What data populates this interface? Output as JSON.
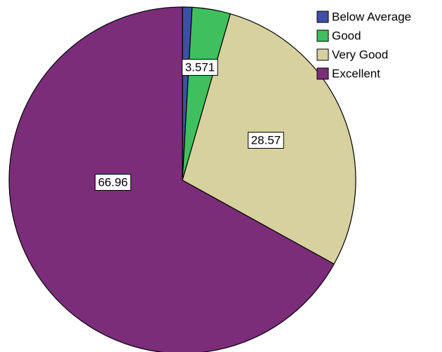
{
  "chart_data": {
    "type": "pie",
    "title": "",
    "legend_position": "top-right",
    "start_angle_deg": 0,
    "direction": "clockwise",
    "slices": [
      {
        "label": "Below Average",
        "value": 0.893,
        "color": "#3f4fa6",
        "data_label": ""
      },
      {
        "label": "Good",
        "value": 3.571,
        "color": "#3fbf5e",
        "data_label": "3.571"
      },
      {
        "label": "Very Good",
        "value": 28.57,
        "color": "#d6d19e",
        "data_label": "28.57"
      },
      {
        "label": "Excellent",
        "value": 66.96,
        "color": "#7b2d7a",
        "data_label": "66.96"
      }
    ]
  }
}
